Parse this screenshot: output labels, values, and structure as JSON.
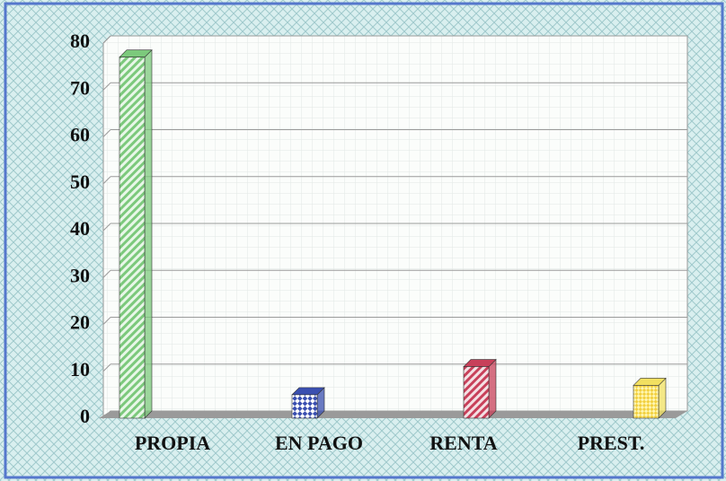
{
  "chart_data": {
    "type": "bar",
    "categories": [
      "PROPIA",
      "EN PAGO",
      "RENTA",
      "PREST."
    ],
    "values": [
      77,
      5,
      11,
      7
    ],
    "colors": [
      "#7cc97c",
      "#3a4fb0",
      "#c8405a",
      "#f2e060"
    ],
    "ylim": [
      0,
      80
    ],
    "yticks": [
      0,
      10,
      20,
      30,
      40,
      50,
      60,
      70,
      80
    ],
    "grid": true
  }
}
